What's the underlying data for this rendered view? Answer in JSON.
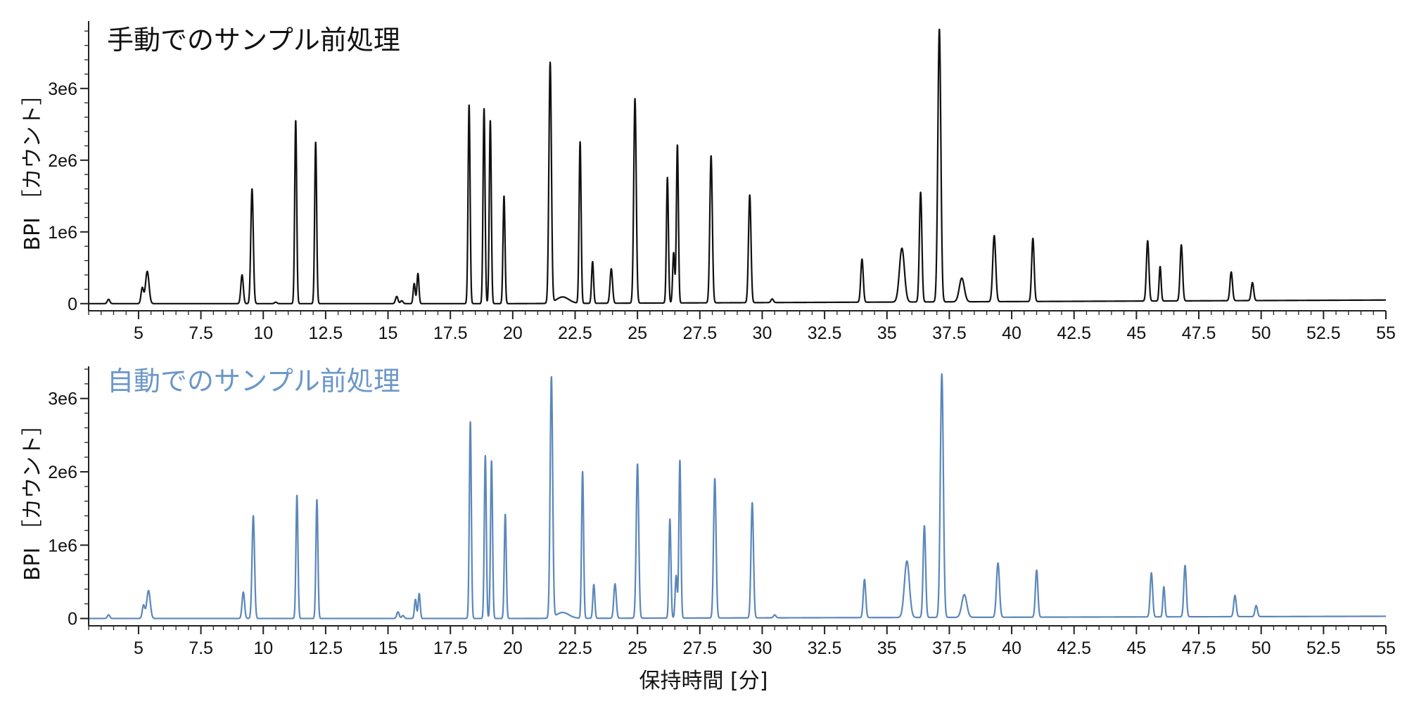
{
  "chart_data": [
    {
      "type": "line",
      "title": "手動でのサンプル前処理",
      "ylabel": "BPI ［カウント］",
      "xlabel": "",
      "xlim": [
        3,
        55
      ],
      "ylim": [
        -0.1,
        3.9
      ],
      "x_ticks": [
        5,
        7.5,
        10,
        12.5,
        15,
        17.5,
        20,
        22.5,
        25,
        27.5,
        30,
        32.5,
        35,
        37.5,
        40,
        42.5,
        45,
        47.5,
        50,
        52.5,
        55
      ],
      "x_tick_labels": [
        "5",
        "7.5",
        "10",
        "12.5",
        "15",
        "17.5",
        "20",
        "22.5",
        "25",
        "27.5",
        "30",
        "32.5",
        "35",
        "37.5",
        "40",
        "42.5",
        "45",
        "47.5",
        "50",
        "52.5",
        "55"
      ],
      "y_ticks": [
        0,
        1,
        2,
        3
      ],
      "y_tick_labels": [
        "0",
        "1e6",
        "2e6",
        "3e6"
      ],
      "y_unit_multiplier": 1000000,
      "line_color": "#111111",
      "title_color": "#111111",
      "series": [
        {
          "peaks_rt_height_width": [
            [
              3.8,
              0.06,
              0.05
            ],
            [
              5.15,
              0.22,
              0.05
            ],
            [
              5.35,
              0.45,
              0.07
            ],
            [
              9.15,
              0.4,
              0.05
            ],
            [
              9.55,
              1.6,
              0.05
            ],
            [
              10.5,
              0.02,
              0.05
            ],
            [
              11.3,
              2.55,
              0.04
            ],
            [
              12.1,
              2.25,
              0.04
            ],
            [
              15.35,
              0.1,
              0.05
            ],
            [
              15.55,
              0.04,
              0.05
            ],
            [
              16.05,
              0.28,
              0.04
            ],
            [
              16.2,
              0.42,
              0.04
            ],
            [
              18.25,
              2.77,
              0.04
            ],
            [
              18.85,
              2.72,
              0.04
            ],
            [
              19.1,
              2.55,
              0.04
            ],
            [
              19.65,
              1.5,
              0.04
            ],
            [
              21.5,
              3.35,
              0.05
            ],
            [
              22.0,
              0.09,
              0.25
            ],
            [
              22.7,
              2.25,
              0.04
            ],
            [
              23.2,
              0.58,
              0.04
            ],
            [
              23.95,
              0.48,
              0.05
            ],
            [
              24.9,
              2.85,
              0.05
            ],
            [
              26.2,
              1.75,
              0.04
            ],
            [
              26.45,
              0.7,
              0.04
            ],
            [
              26.6,
              2.2,
              0.04
            ],
            [
              27.95,
              2.05,
              0.05
            ],
            [
              29.5,
              1.5,
              0.05
            ],
            [
              30.4,
              0.05,
              0.05
            ],
            [
              34.0,
              0.6,
              0.05
            ],
            [
              35.6,
              0.75,
              0.1
            ],
            [
              36.35,
              1.53,
              0.05
            ],
            [
              37.1,
              3.8,
              0.06
            ],
            [
              38.0,
              0.33,
              0.1
            ],
            [
              39.3,
              0.92,
              0.06
            ],
            [
              40.85,
              0.88,
              0.05
            ],
            [
              45.45,
              0.84,
              0.05
            ],
            [
              45.95,
              0.48,
              0.04
            ],
            [
              46.8,
              0.78,
              0.05
            ],
            [
              48.8,
              0.4,
              0.05
            ],
            [
              49.65,
              0.25,
              0.05
            ]
          ],
          "baseline_start": 0.0,
          "baseline_end": 0.05
        }
      ]
    },
    {
      "type": "line",
      "title": "自動でのサンプル前処理",
      "ylabel": "BPI ［カウント］",
      "xlabel": "保持時間 [分]",
      "xlim": [
        3,
        55
      ],
      "ylim": [
        -0.1,
        3.4
      ],
      "x_ticks": [
        5,
        7.5,
        10,
        12.5,
        15,
        17.5,
        20,
        22.5,
        25,
        27.5,
        30,
        32.5,
        35,
        37.5,
        40,
        42.5,
        45,
        47.5,
        50,
        52.5,
        55
      ],
      "x_tick_labels": [
        "5",
        "7.5",
        "10",
        "12.5",
        "15",
        "17.5",
        "20",
        "22.5",
        "25",
        "27.5",
        "30",
        "32.5",
        "35",
        "37.5",
        "40",
        "42.5",
        "45",
        "47.5",
        "50",
        "52.5",
        "55"
      ],
      "y_ticks": [
        0,
        1,
        2,
        3
      ],
      "y_tick_labels": [
        "0",
        "1e6",
        "2e6",
        "3e6"
      ],
      "y_unit_multiplier": 1000000,
      "line_color": "#5b87ba",
      "title_color": "#6b97c8",
      "series": [
        {
          "peaks_rt_height_width": [
            [
              3.8,
              0.05,
              0.05
            ],
            [
              5.2,
              0.18,
              0.05
            ],
            [
              5.4,
              0.38,
              0.07
            ],
            [
              9.2,
              0.36,
              0.05
            ],
            [
              9.6,
              1.4,
              0.05
            ],
            [
              11.35,
              1.68,
              0.04
            ],
            [
              12.15,
              1.62,
              0.04
            ],
            [
              15.4,
              0.09,
              0.05
            ],
            [
              15.6,
              0.04,
              0.05
            ],
            [
              16.1,
              0.26,
              0.04
            ],
            [
              16.25,
              0.34,
              0.04
            ],
            [
              18.3,
              2.68,
              0.04
            ],
            [
              18.9,
              2.22,
              0.04
            ],
            [
              19.15,
              2.15,
              0.04
            ],
            [
              19.7,
              1.42,
              0.04
            ],
            [
              21.55,
              3.28,
              0.05
            ],
            [
              22.0,
              0.08,
              0.25
            ],
            [
              22.8,
              2.0,
              0.04
            ],
            [
              23.25,
              0.46,
              0.04
            ],
            [
              24.1,
              0.47,
              0.05
            ],
            [
              25.0,
              2.1,
              0.05
            ],
            [
              26.3,
              1.35,
              0.04
            ],
            [
              26.55,
              0.58,
              0.04
            ],
            [
              26.7,
              2.15,
              0.04
            ],
            [
              28.1,
              1.9,
              0.05
            ],
            [
              29.6,
              1.57,
              0.05
            ],
            [
              30.5,
              0.04,
              0.05
            ],
            [
              34.1,
              0.52,
              0.05
            ],
            [
              35.8,
              0.77,
              0.1
            ],
            [
              36.5,
              1.25,
              0.05
            ],
            [
              37.2,
              3.32,
              0.06
            ],
            [
              38.1,
              0.31,
              0.1
            ],
            [
              39.45,
              0.74,
              0.06
            ],
            [
              41.0,
              0.64,
              0.05
            ],
            [
              45.6,
              0.6,
              0.05
            ],
            [
              46.1,
              0.41,
              0.04
            ],
            [
              46.95,
              0.7,
              0.05
            ],
            [
              48.95,
              0.29,
              0.05
            ],
            [
              49.8,
              0.15,
              0.05
            ]
          ],
          "baseline_start": 0.0,
          "baseline_end": 0.03
        }
      ]
    }
  ]
}
